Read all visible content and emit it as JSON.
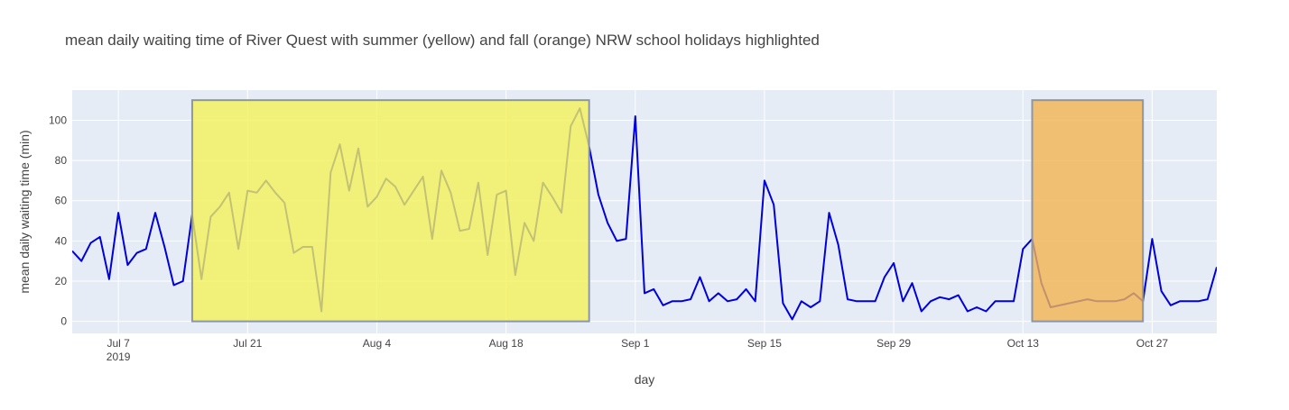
{
  "chart_data": {
    "type": "line",
    "title": "mean daily waiting time of River Quest with summer (yellow) and fall (orange) NRW school holidays highlighted",
    "xlabel": "day",
    "ylabel": "mean daily waiting time (min)",
    "x_range": [
      "2019-07-02",
      "2019-10-31"
    ],
    "ylim": [
      -6,
      115
    ],
    "grid": true,
    "x_ticks": [
      {
        "date": "2019-07-07",
        "label": "Jul 7",
        "sublabel": "2019"
      },
      {
        "date": "2019-07-21",
        "label": "Jul 21"
      },
      {
        "date": "2019-08-04",
        "label": "Aug 4"
      },
      {
        "date": "2019-08-18",
        "label": "Aug 18"
      },
      {
        "date": "2019-09-01",
        "label": "Sep 1"
      },
      {
        "date": "2019-09-15",
        "label": "Sep 15"
      },
      {
        "date": "2019-09-29",
        "label": "Sep 29"
      },
      {
        "date": "2019-10-13",
        "label": "Oct 13"
      },
      {
        "date": "2019-10-27",
        "label": "Oct 27"
      }
    ],
    "y_ticks": [
      0,
      20,
      40,
      60,
      80,
      100
    ],
    "colors": {
      "line": "#0000dd",
      "plot_bg": "#e5ecf6",
      "grid": "#ffffff",
      "summer_fill": "#f4f25a",
      "fall_fill": "#f2b450",
      "holiday_border": "#8c96a6",
      "text": "#444444",
      "title": "#444444"
    },
    "holidays": [
      {
        "start": "2019-07-15",
        "end": "2019-08-27",
        "y0": 0,
        "y1": 110,
        "color": "summer"
      },
      {
        "start": "2019-10-14",
        "end": "2019-10-26",
        "y0": 0,
        "y1": 110,
        "color": "fall"
      }
    ],
    "series": [
      {
        "points": [
          [
            "2019-07-02",
            35
          ],
          [
            "2019-07-03",
            30
          ],
          [
            "2019-07-04",
            39
          ],
          [
            "2019-07-05",
            42
          ],
          [
            "2019-07-06",
            21
          ],
          [
            "2019-07-07",
            54
          ],
          [
            "2019-07-08",
            28
          ],
          [
            "2019-07-09",
            34
          ],
          [
            "2019-07-10",
            36
          ],
          [
            "2019-07-11",
            54
          ],
          [
            "2019-07-12",
            37
          ],
          [
            "2019-07-13",
            18
          ],
          [
            "2019-07-14",
            20
          ],
          [
            "2019-07-15",
            53
          ],
          [
            "2019-07-16",
            21
          ],
          [
            "2019-07-17",
            52
          ],
          [
            "2019-07-18",
            57
          ],
          [
            "2019-07-19",
            64
          ],
          [
            "2019-07-20",
            36
          ],
          [
            "2019-07-21",
            65
          ],
          [
            "2019-07-22",
            64
          ],
          [
            "2019-07-23",
            70
          ],
          [
            "2019-07-24",
            64
          ],
          [
            "2019-07-25",
            59
          ],
          [
            "2019-07-26",
            34
          ],
          [
            "2019-07-27",
            37
          ],
          [
            "2019-07-28",
            37
          ],
          [
            "2019-07-29",
            5
          ],
          [
            "2019-07-30",
            74
          ],
          [
            "2019-07-31",
            88
          ],
          [
            "2019-08-01",
            65
          ],
          [
            "2019-08-02",
            86
          ],
          [
            "2019-08-03",
            57
          ],
          [
            "2019-08-04",
            62
          ],
          [
            "2019-08-05",
            71
          ],
          [
            "2019-08-06",
            67
          ],
          [
            "2019-08-07",
            58
          ],
          [
            "2019-08-08",
            65
          ],
          [
            "2019-08-09",
            72
          ],
          [
            "2019-08-10",
            41
          ],
          [
            "2019-08-11",
            75
          ],
          [
            "2019-08-12",
            64
          ],
          [
            "2019-08-13",
            45
          ],
          [
            "2019-08-14",
            46
          ],
          [
            "2019-08-15",
            69
          ],
          [
            "2019-08-16",
            33
          ],
          [
            "2019-08-17",
            63
          ],
          [
            "2019-08-18",
            65
          ],
          [
            "2019-08-19",
            23
          ],
          [
            "2019-08-20",
            49
          ],
          [
            "2019-08-21",
            40
          ],
          [
            "2019-08-22",
            69
          ],
          [
            "2019-08-23",
            62
          ],
          [
            "2019-08-24",
            54
          ],
          [
            "2019-08-25",
            97
          ],
          [
            "2019-08-26",
            106
          ],
          [
            "2019-08-27",
            87
          ],
          [
            "2019-08-28",
            63
          ],
          [
            "2019-08-29",
            49
          ],
          [
            "2019-08-30",
            40
          ],
          [
            "2019-08-31",
            41
          ],
          [
            "2019-09-01",
            102
          ],
          [
            "2019-09-02",
            14
          ],
          [
            "2019-09-03",
            16
          ],
          [
            "2019-09-04",
            8
          ],
          [
            "2019-09-05",
            10
          ],
          [
            "2019-09-06",
            10
          ],
          [
            "2019-09-07",
            11
          ],
          [
            "2019-09-08",
            22
          ],
          [
            "2019-09-09",
            10
          ],
          [
            "2019-09-10",
            14
          ],
          [
            "2019-09-11",
            10
          ],
          [
            "2019-09-12",
            11
          ],
          [
            "2019-09-13",
            16
          ],
          [
            "2019-09-14",
            10
          ],
          [
            "2019-09-15",
            70
          ],
          [
            "2019-09-16",
            58
          ],
          [
            "2019-09-17",
            9
          ],
          [
            "2019-09-18",
            1
          ],
          [
            "2019-09-19",
            10
          ],
          [
            "2019-09-20",
            7
          ],
          [
            "2019-09-21",
            10
          ],
          [
            "2019-09-22",
            54
          ],
          [
            "2019-09-23",
            38
          ],
          [
            "2019-09-24",
            11
          ],
          [
            "2019-09-25",
            10
          ],
          [
            "2019-09-26",
            10
          ],
          [
            "2019-09-27",
            10
          ],
          [
            "2019-09-28",
            22
          ],
          [
            "2019-09-29",
            29
          ],
          [
            "2019-09-30",
            10
          ],
          [
            "2019-10-01",
            19
          ],
          [
            "2019-10-02",
            5
          ],
          [
            "2019-10-03",
            10
          ],
          [
            "2019-10-04",
            12
          ],
          [
            "2019-10-05",
            11
          ],
          [
            "2019-10-06",
            13
          ],
          [
            "2019-10-07",
            5
          ],
          [
            "2019-10-08",
            7
          ],
          [
            "2019-10-09",
            5
          ],
          [
            "2019-10-10",
            10
          ],
          [
            "2019-10-11",
            10
          ],
          [
            "2019-10-12",
            10
          ],
          [
            "2019-10-13",
            36
          ],
          [
            "2019-10-14",
            41
          ],
          [
            "2019-10-15",
            19
          ],
          [
            "2019-10-16",
            7
          ],
          [
            "2019-10-20",
            11
          ],
          [
            "2019-10-21",
            10
          ],
          [
            "2019-10-22",
            10
          ],
          [
            "2019-10-23",
            10
          ],
          [
            "2019-10-24",
            11
          ],
          [
            "2019-10-25",
            14
          ],
          [
            "2019-10-26",
            10
          ],
          [
            "2019-10-27",
            41
          ],
          [
            "2019-10-28",
            15
          ],
          [
            "2019-10-29",
            8
          ],
          [
            "2019-10-30",
            10
          ],
          [
            "2019-10-31",
            10
          ],
          [
            "2019-11-01",
            10
          ],
          [
            "2019-11-02",
            11
          ],
          [
            "2019-11-03",
            27
          ]
        ]
      }
    ]
  }
}
